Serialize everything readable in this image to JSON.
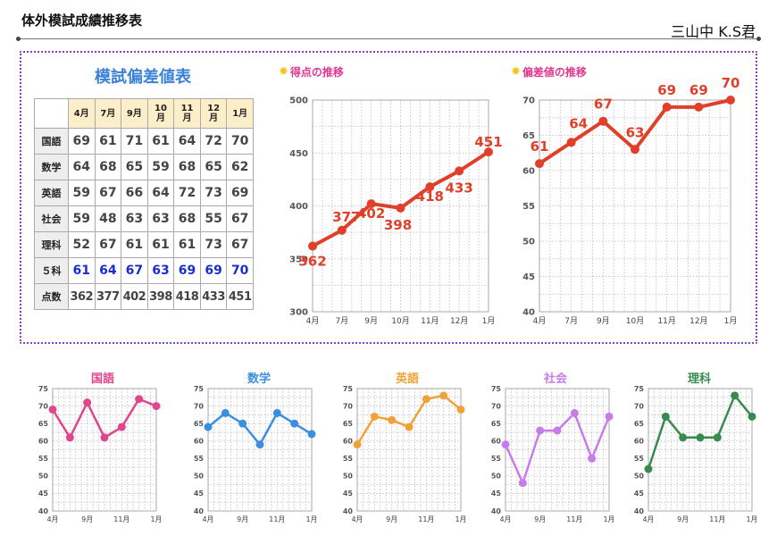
{
  "header": {
    "title": "体外模試成績推移表",
    "student": "三山中 K.S君"
  },
  "table": {
    "title": "模試偏差値表",
    "months": [
      "4月",
      "7月",
      "9月",
      "10\n月",
      "11\n月",
      "12\n月",
      "1月"
    ],
    "rows": [
      {
        "label": "国語",
        "values": [
          "69",
          "61",
          "71",
          "61",
          "64",
          "72",
          "70"
        ]
      },
      {
        "label": "数学",
        "values": [
          "64",
          "68",
          "65",
          "59",
          "68",
          "65",
          "62"
        ]
      },
      {
        "label": "英語",
        "values": [
          "59",
          "67",
          "66",
          "64",
          "72",
          "73",
          "69"
        ]
      },
      {
        "label": "社会",
        "values": [
          "59",
          "48",
          "63",
          "63",
          "68",
          "55",
          "67"
        ]
      },
      {
        "label": "理科",
        "values": [
          "52",
          "67",
          "61",
          "61",
          "61",
          "73",
          "67"
        ]
      },
      {
        "label": "５科",
        "values": [
          "61",
          "64",
          "67",
          "63",
          "69",
          "69",
          "70"
        ]
      },
      {
        "label": "点数",
        "values": [
          "362",
          "377",
          "402",
          "398",
          "418",
          "433",
          "451"
        ]
      }
    ]
  },
  "chart_data": [
    {
      "type": "line",
      "title": "得点の推移",
      "icon": "star-icon",
      "categories": [
        "4月",
        "7月",
        "9月",
        "10月",
        "11月",
        "12月",
        "1月"
      ],
      "series": [
        {
          "values": [
            362,
            377,
            402,
            398,
            418,
            433,
            451
          ]
        }
      ],
      "ylim": [
        300,
        500
      ],
      "yticks": [
        300,
        350,
        400,
        450,
        500
      ],
      "color": "#e0402a",
      "data_labels": true,
      "grid": true
    },
    {
      "type": "line",
      "title": "偏差値の推移",
      "icon": "star-icon",
      "categories": [
        "4月",
        "7月",
        "9月",
        "10月",
        "11月",
        "12月",
        "1月"
      ],
      "series": [
        {
          "values": [
            61,
            64,
            67,
            63,
            69,
            69,
            70
          ]
        }
      ],
      "ylim": [
        40,
        70
      ],
      "yticks": [
        40,
        45,
        50,
        55,
        60,
        65,
        70
      ],
      "color": "#e0402a",
      "data_labels": true,
      "grid": true
    },
    {
      "type": "line",
      "title": "国語",
      "categories": [
        "4月",
        "7月",
        "9月",
        "10月",
        "11月",
        "12月",
        "1月"
      ],
      "xticks": [
        "4月",
        "9月",
        "11月",
        "1月"
      ],
      "series": [
        {
          "values": [
            69,
            61,
            71,
            61,
            64,
            72,
            70
          ]
        }
      ],
      "ylim": [
        40,
        75
      ],
      "yticks": [
        40,
        45,
        50,
        55,
        60,
        65,
        70,
        75
      ],
      "color": "#e0468c",
      "grid": true
    },
    {
      "type": "line",
      "title": "数学",
      "categories": [
        "4月",
        "7月",
        "9月",
        "10月",
        "11月",
        "12月",
        "1月"
      ],
      "xticks": [
        "4月",
        "9月",
        "11月",
        "1月"
      ],
      "series": [
        {
          "values": [
            64,
            68,
            65,
            59,
            68,
            65,
            62
          ]
        }
      ],
      "ylim": [
        40,
        75
      ],
      "yticks": [
        40,
        45,
        50,
        55,
        60,
        65,
        70,
        75
      ],
      "color": "#3b8fe0",
      "grid": true
    },
    {
      "type": "line",
      "title": "英語",
      "categories": [
        "4月",
        "7月",
        "9月",
        "10月",
        "11月",
        "12月",
        "1月"
      ],
      "xticks": [
        "4月",
        "9月",
        "11月",
        "1月"
      ],
      "series": [
        {
          "values": [
            59,
            67,
            66,
            64,
            72,
            73,
            69
          ]
        }
      ],
      "ylim": [
        40,
        75
      ],
      "yticks": [
        40,
        45,
        50,
        55,
        60,
        65,
        70,
        75
      ],
      "color": "#f0a238",
      "grid": true
    },
    {
      "type": "line",
      "title": "社会",
      "categories": [
        "4月",
        "7月",
        "9月",
        "10月",
        "11月",
        "12月",
        "1月"
      ],
      "xticks": [
        "4月",
        "9月",
        "11月",
        "1月"
      ],
      "series": [
        {
          "values": [
            59,
            48,
            63,
            63,
            68,
            55,
            67
          ]
        }
      ],
      "ylim": [
        40,
        75
      ],
      "yticks": [
        40,
        45,
        50,
        55,
        60,
        65,
        70,
        75
      ],
      "color": "#c77de8",
      "grid": true
    },
    {
      "type": "line",
      "title": "理科",
      "categories": [
        "4月",
        "7月",
        "9月",
        "10月",
        "11月",
        "12月",
        "1月"
      ],
      "xticks": [
        "4月",
        "9月",
        "11月",
        "1月"
      ],
      "series": [
        {
          "values": [
            52,
            67,
            61,
            61,
            61,
            73,
            67
          ]
        }
      ],
      "ylim": [
        40,
        75
      ],
      "yticks": [
        40,
        45,
        50,
        55,
        60,
        65,
        70,
        75
      ],
      "color": "#3a8a4e",
      "grid": true
    }
  ]
}
